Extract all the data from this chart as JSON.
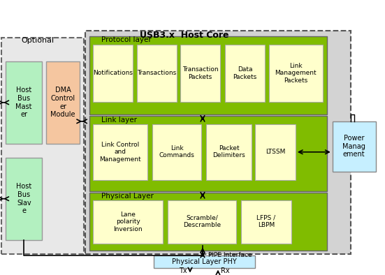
{
  "title": "USB3.x  Host Core",
  "bg_color": "#d0d0d0",
  "outer_bg": "#ffffff",
  "green_layer": "#7cb800",
  "yellow_box": "#ffffcc",
  "light_green_box": "#ccff99",
  "light_blue_box": "#c6efff",
  "light_orange_box": "#f5c6a0",
  "optional_label": "Optional",
  "protocol_label": "Protocol layer",
  "link_label": "Link layer",
  "physical_label": "Physical Layer",
  "pipe_label": "PIPE Interface",
  "phy_label": "Physical Layer PHY",
  "tx_label": "Tx",
  "rx_label": "Rx",
  "protocol_boxes": [
    "Notifications",
    "Transactions",
    "Transaction\nPackets",
    "Data\nPackets",
    "Link\nManagement\nPackets"
  ],
  "link_boxes": [
    "Link Control\nand\nManagement",
    "Link\nCommands",
    "Packet\nDelimiters",
    "LTSSM"
  ],
  "physical_boxes": [
    "Lane\npolarity\nInversion",
    "Scramble/\nDescramble",
    "LFPS /\nLBPM"
  ],
  "host_bus_master": "Host\nBus\nMast\ner",
  "dma": "DMA\nControl\ner\nModule",
  "host_bus_slave": "Host\nBus\nSlav\ne",
  "power_mgmt": "Power\nManag\nement"
}
